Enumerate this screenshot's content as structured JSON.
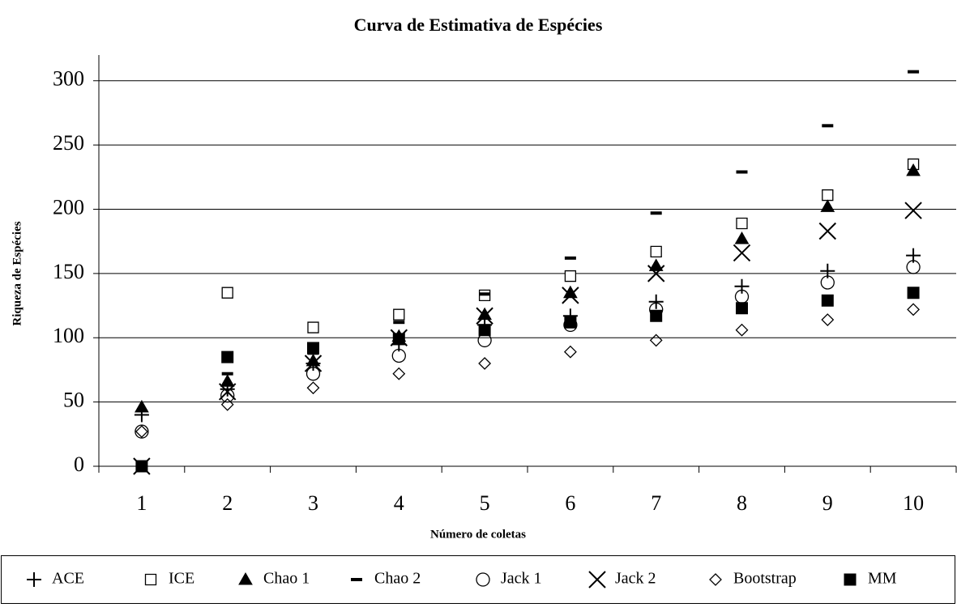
{
  "chart_data": {
    "type": "scatter",
    "title": "Curva de Estimativa de Espécies",
    "x_label": "Número de coletas",
    "y_label": "Riqueza de Espécies",
    "categories": [
      "1",
      "2",
      "3",
      "4",
      "5",
      "6",
      "7",
      "8",
      "9",
      "10"
    ],
    "ylim": [
      0,
      320
    ],
    "yticks": [
      0,
      50,
      100,
      150,
      200,
      250,
      300
    ],
    "grid": true,
    "legend": "bottom",
    "series": [
      {
        "name": "ACE",
        "marker": "plus",
        "color": "#000000",
        "values": [
          40,
          60,
          80,
          95,
          110,
          117,
          128,
          140,
          152,
          164
        ]
      },
      {
        "name": "ICE",
        "marker": "square-open",
        "color": "#000000",
        "values": [
          0,
          135,
          108,
          118,
          133,
          148,
          167,
          189,
          211,
          235
        ]
      },
      {
        "name": "Chao 1",
        "marker": "triangle",
        "color": "#000000",
        "values": [
          46,
          66,
          82,
          101,
          118,
          135,
          156,
          177,
          202,
          230
        ]
      },
      {
        "name": "Chao 2",
        "marker": "dash",
        "color": "#000000",
        "values": [
          0,
          72,
          88,
          112,
          134,
          162,
          197,
          229,
          265,
          307
        ]
      },
      {
        "name": "Jack 1",
        "marker": "circle-open",
        "color": "#000000",
        "values": [
          27,
          55,
          72,
          86,
          98,
          110,
          122,
          132,
          143,
          155
        ]
      },
      {
        "name": "Jack 2",
        "marker": "x",
        "color": "#000000",
        "values": [
          0,
          58,
          80,
          100,
          117,
          133,
          150,
          166,
          183,
          199
        ]
      },
      {
        "name": "Bootstrap",
        "marker": "diamond-open",
        "color": "#000000",
        "values": [
          27,
          48,
          61,
          72,
          80,
          89,
          98,
          106,
          114,
          122
        ]
      },
      {
        "name": "MM",
        "marker": "square",
        "color": "#000000",
        "values": [
          0,
          85,
          92,
          99,
          106,
          112,
          117,
          123,
          129,
          135
        ]
      }
    ]
  }
}
